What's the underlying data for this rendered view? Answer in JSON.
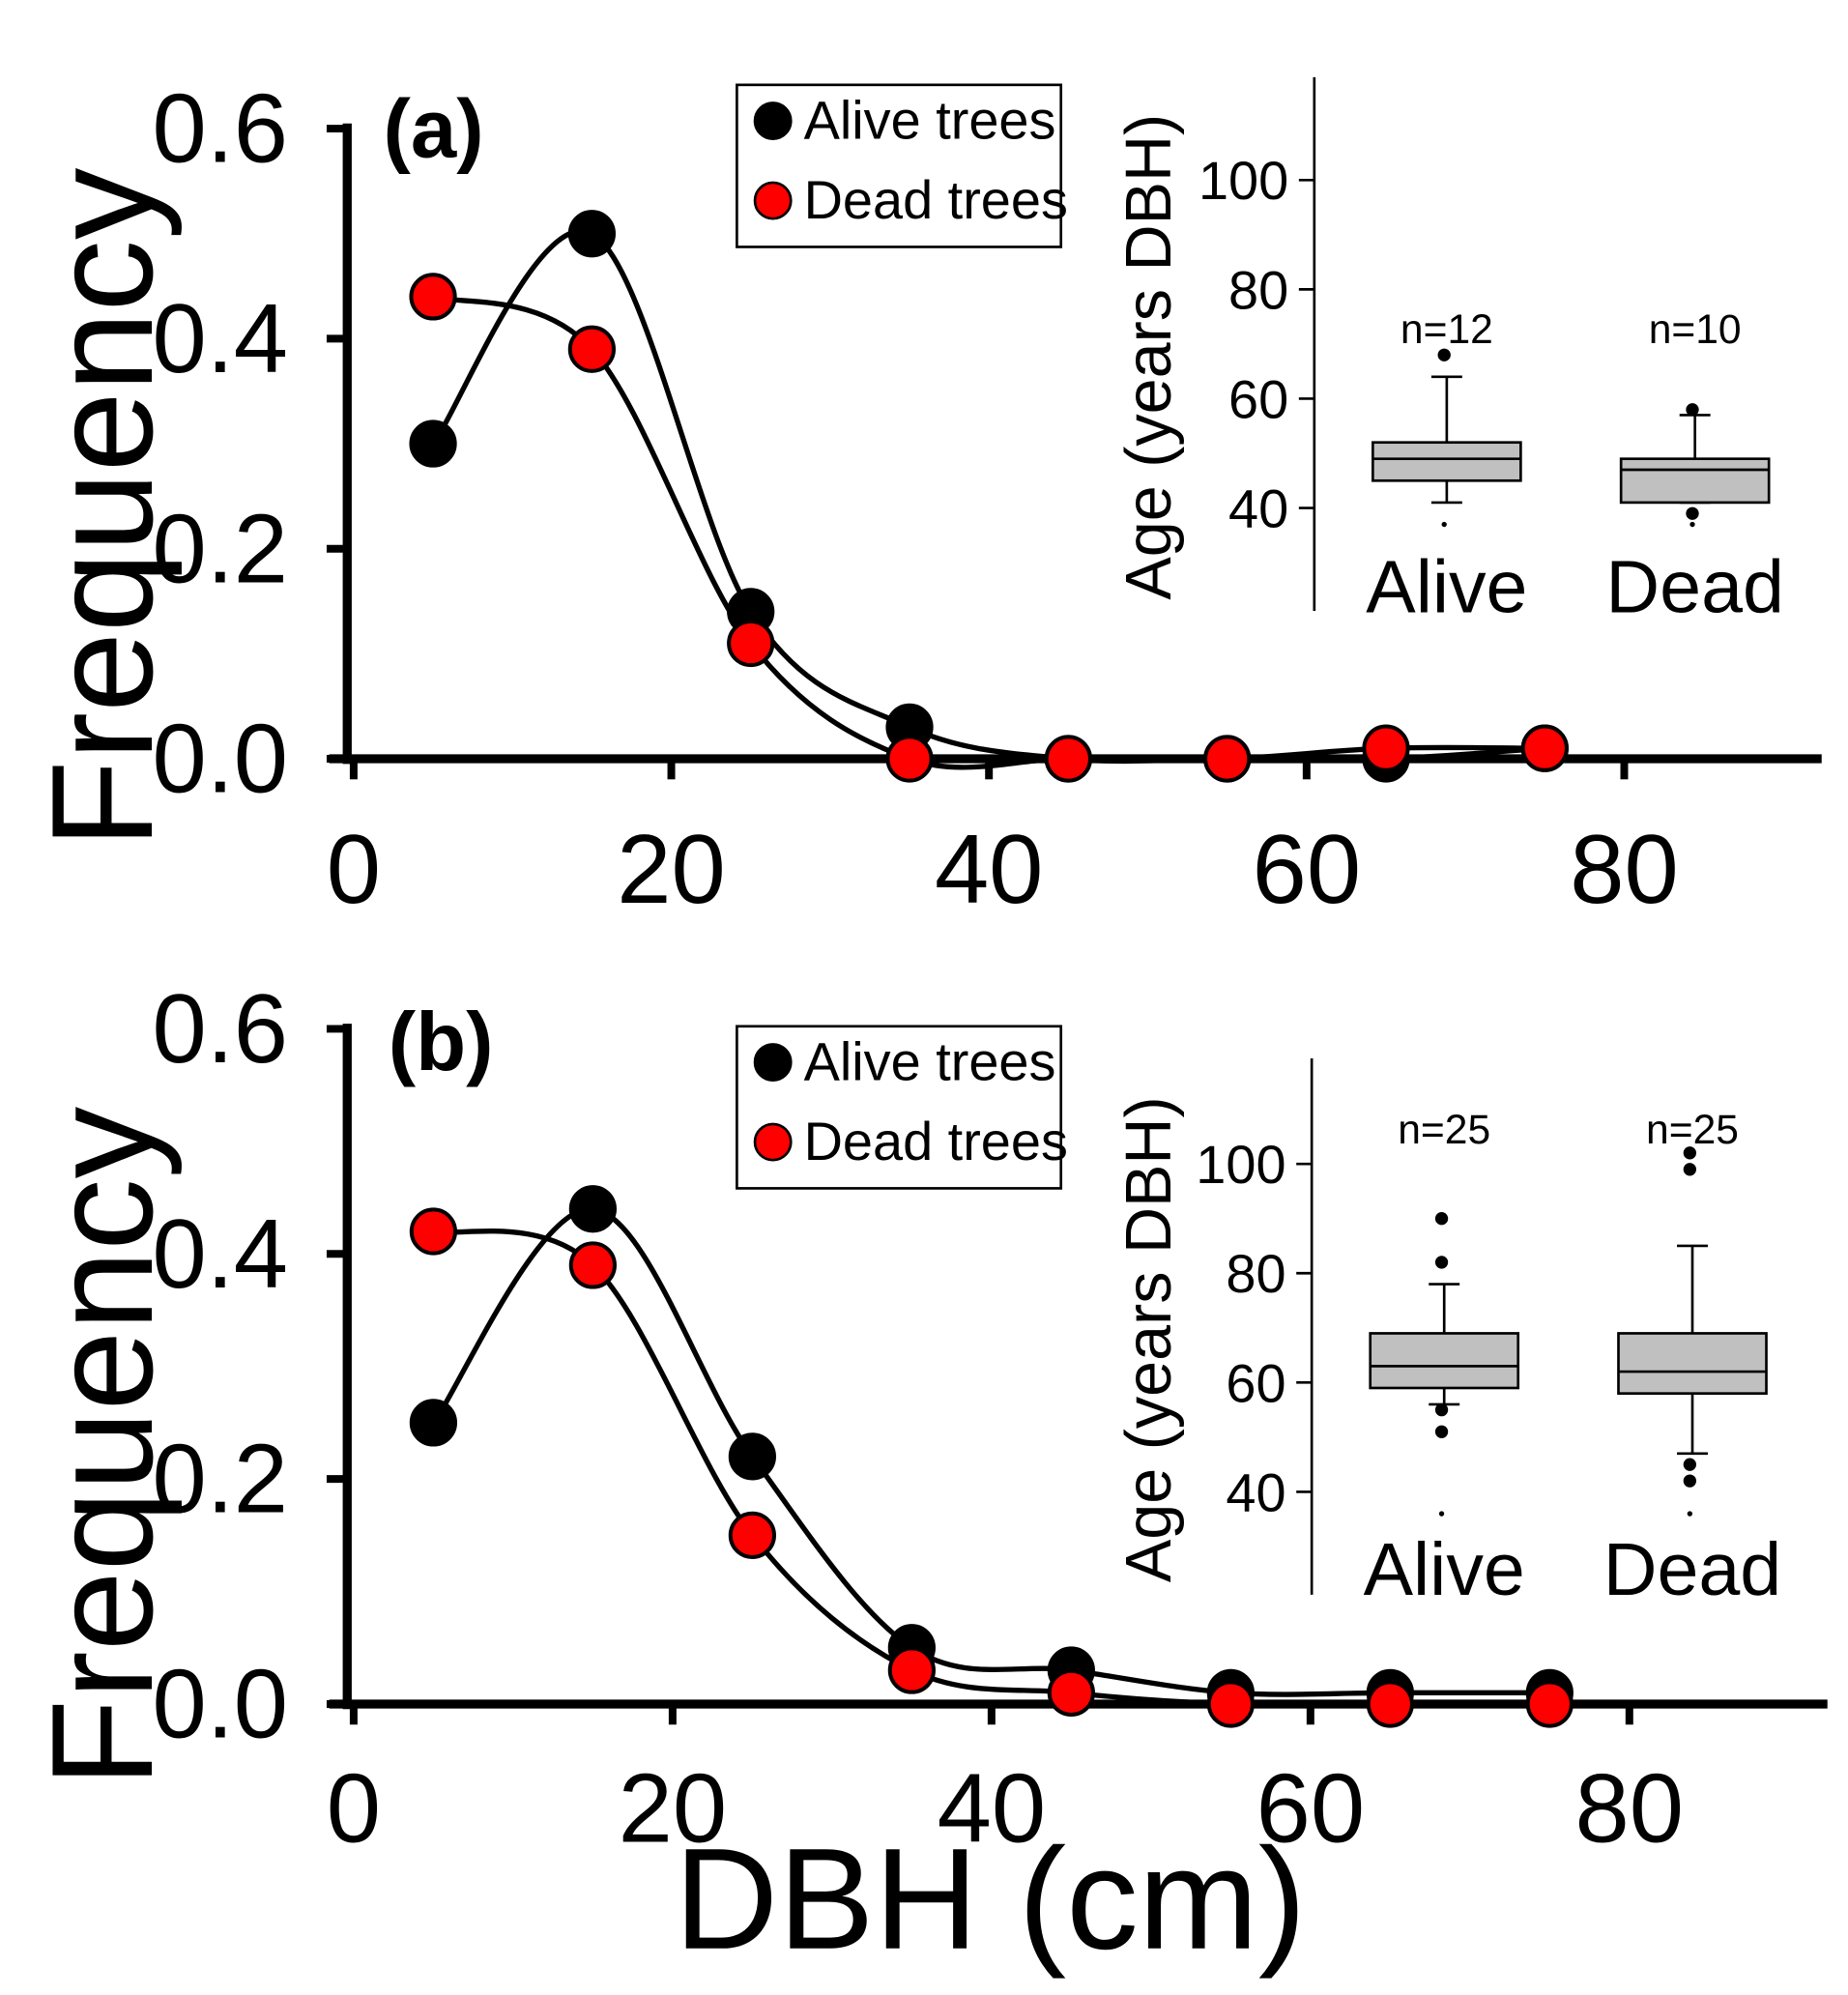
{
  "colors": {
    "alive": "#000000",
    "dead": "#ff0000",
    "box_fill": "#c0c0c0"
  },
  "shared_xlabel": "DBH (cm)",
  "chart_data": [
    {
      "type": "line",
      "panel_label": "(a)",
      "ylabel": "Frequency",
      "xlim": [
        0,
        90
      ],
      "ylim": [
        0,
        0.6
      ],
      "xticks": [
        "0",
        "20",
        "40",
        "60",
        "80"
      ],
      "yticks": [
        "0.0",
        "0.2",
        "0.4",
        "0.6"
      ],
      "legend": [
        "Alive trees",
        "Dead trees"
      ],
      "series": [
        {
          "name": "Alive trees",
          "x": [
            5,
            15,
            25,
            35,
            45,
            55,
            65,
            75
          ],
          "y": [
            0.3,
            0.5,
            0.14,
            0.03,
            0.0,
            0.0,
            0.0,
            0.01
          ]
        },
        {
          "name": "Dead trees",
          "x": [
            5,
            15,
            25,
            35,
            45,
            55,
            65,
            75
          ],
          "y": [
            0.44,
            0.39,
            0.11,
            0.0,
            0.0,
            0.0,
            0.01,
            0.01
          ]
        }
      ],
      "inset": {
        "type": "box",
        "ylabel": "Age (years DBH)",
        "yticks": [
          "40",
          "60",
          "80",
          "100"
        ],
        "ylim": [
          20,
          120
        ],
        "categories": [
          "Alive",
          "Dead"
        ],
        "n_labels": [
          "n=12",
          "n=10"
        ],
        "boxes": [
          {
            "whisker_low": 41,
            "q1": 45,
            "median": 49,
            "q3": 52,
            "whisker_high": 64,
            "outliers": [
              68,
              37
            ]
          },
          {
            "whisker_low": 41,
            "q1": 41,
            "median": 47,
            "q3": 49,
            "whisker_high": 57,
            "outliers": [
              58,
              39,
              37
            ]
          }
        ]
      }
    },
    {
      "type": "line",
      "panel_label": "(b)",
      "ylabel": "Frequency",
      "xlim": [
        0,
        90
      ],
      "ylim": [
        0,
        0.6
      ],
      "xticks": [
        "0",
        "20",
        "40",
        "60",
        "80"
      ],
      "yticks": [
        "0.0",
        "0.2",
        "0.4",
        "0.6"
      ],
      "legend": [
        "Alive trees",
        "Dead trees"
      ],
      "series": [
        {
          "name": "Alive trees",
          "x": [
            5,
            15,
            25,
            35,
            45,
            55,
            65,
            75
          ],
          "y": [
            0.25,
            0.44,
            0.22,
            0.05,
            0.03,
            0.01,
            0.01,
            0.01
          ]
        },
        {
          "name": "Dead trees",
          "x": [
            5,
            15,
            25,
            35,
            45,
            55,
            65,
            75
          ],
          "y": [
            0.42,
            0.39,
            0.15,
            0.03,
            0.01,
            0.0,
            0.0,
            0.0
          ]
        }
      ],
      "inset": {
        "type": "box",
        "ylabel": "Age (years DBH)",
        "yticks": [
          "40",
          "60",
          "80",
          "100"
        ],
        "ylim": [
          20,
          120
        ],
        "categories": [
          "Alive",
          "Dead"
        ],
        "n_labels": [
          "n=25",
          "n=25"
        ],
        "boxes": [
          {
            "whisker_low": 56,
            "q1": 59,
            "median": 63,
            "q3": 69,
            "whisker_high": 78,
            "outliers": [
              90,
              82,
              55,
              51,
              36
            ]
          },
          {
            "whisker_low": 47,
            "q1": 58,
            "median": 62,
            "q3": 69,
            "whisker_high": 85,
            "outliers": [
              102,
              99,
              45,
              42,
              36
            ]
          }
        ]
      }
    }
  ]
}
